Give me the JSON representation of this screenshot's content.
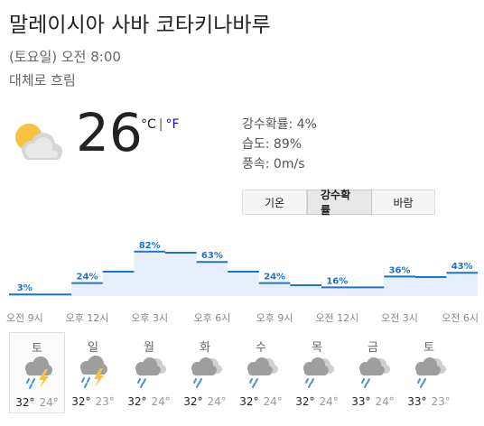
{
  "location": "말레이시아 사바 코타키나바루",
  "datetime": "(토요일) 오전 8:00",
  "condition": "대체로 흐림",
  "current": {
    "temperature": "26",
    "unit_c": "°C",
    "separator": "|",
    "unit_f": "°F",
    "icon": "partly-cloudy-icon"
  },
  "details": {
    "precipitation": "강수확률: 4%",
    "humidity": "습도: 89%",
    "wind": "풍속: 0m/s"
  },
  "tabs": [
    {
      "label": "기온",
      "selected": false
    },
    {
      "label": "강수확률",
      "selected": true
    },
    {
      "label": "바람",
      "selected": false
    }
  ],
  "chart_data": {
    "type": "bar",
    "series": [
      {
        "values": [
          3,
          3,
          24,
          45,
          82,
          80,
          63,
          45,
          24,
          20,
          16,
          16,
          36,
          35,
          43
        ]
      }
    ],
    "data_labels": [
      "3%",
      "24%",
      "82%",
      "63%",
      "24%",
      "16%",
      "36%",
      "43%"
    ],
    "tick_labels": [
      "오전 9시",
      "오후 12시",
      "오후 3시",
      "오후 6시",
      "오후 9시",
      "오전 12시",
      "오전 3시",
      "오전 6시"
    ],
    "ylim": [
      0,
      100
    ],
    "colors": {
      "line": "#1c72d6",
      "fill": "#e6effb",
      "label": "#1c72d6"
    }
  },
  "forecast": [
    {
      "day": "토",
      "icon": "thunderstorm-icon",
      "high": "32°",
      "low": "24°",
      "selected": true
    },
    {
      "day": "일",
      "icon": "thunderstorm-icon",
      "high": "32°",
      "low": "23°",
      "selected": false
    },
    {
      "day": "월",
      "icon": "rain-cloud-icon",
      "high": "32°",
      "low": "24°",
      "selected": false
    },
    {
      "day": "화",
      "icon": "rain-cloud-icon",
      "high": "32°",
      "low": "24°",
      "selected": false
    },
    {
      "day": "수",
      "icon": "rain-cloud-icon",
      "high": "32°",
      "low": "24°",
      "selected": false
    },
    {
      "day": "목",
      "icon": "rain-cloud-icon",
      "high": "32°",
      "low": "24°",
      "selected": false
    },
    {
      "day": "금",
      "icon": "rain-cloud-icon",
      "high": "33°",
      "low": "24°",
      "selected": false
    },
    {
      "day": "토",
      "icon": "rain-cloud-icon",
      "high": "33°",
      "low": "23°",
      "selected": false
    }
  ]
}
